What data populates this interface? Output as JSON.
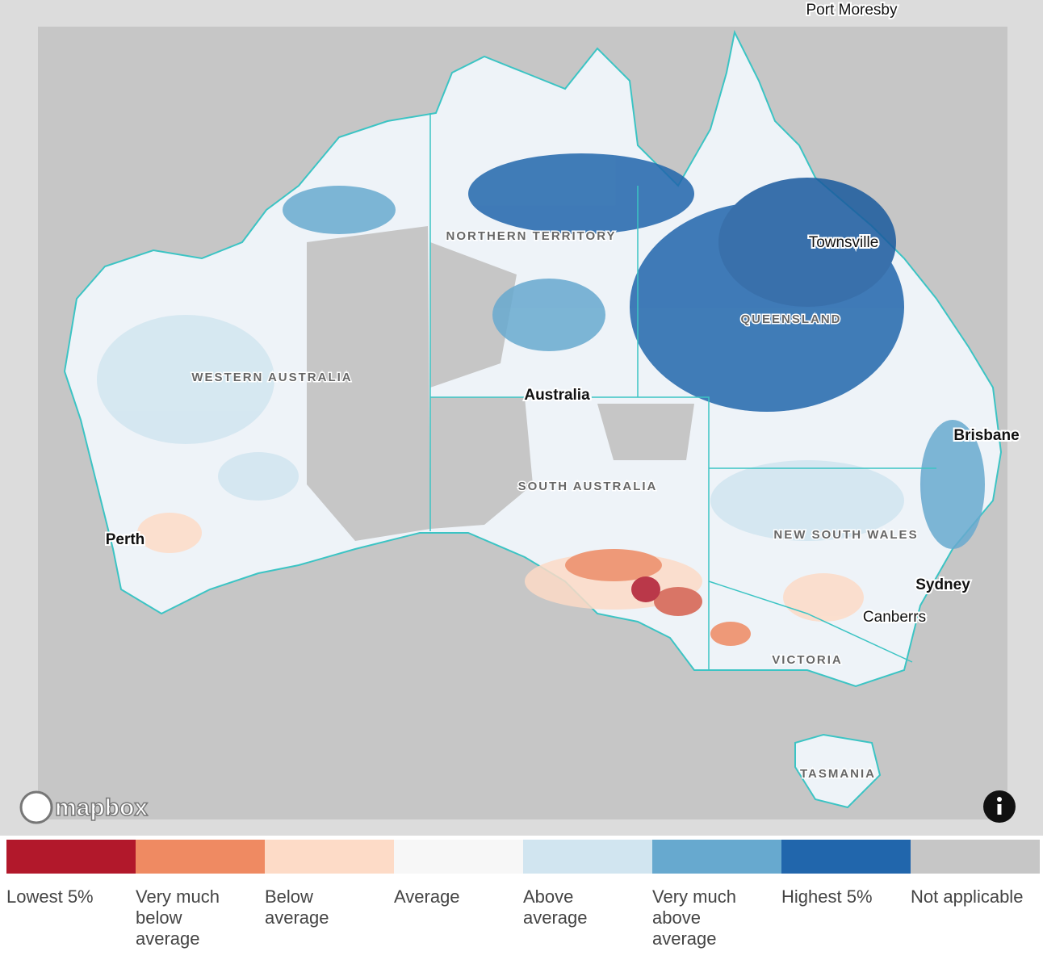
{
  "map": {
    "labels": {
      "port_moresby": "Port Moresby",
      "northern_territory": "NORTHERN TERRITORY",
      "townsville": "Townsville",
      "queensland": "QUEENSLAND",
      "western_australia": "WESTERN AUSTRALIA",
      "australia": "Australia",
      "brisbane": "Brisbane",
      "south_australia": "SOUTH AUSTRALIA",
      "perth": "Perth",
      "new_south_wales": "NEW SOUTH WALES",
      "sydney": "Sydney",
      "canberra": "Canberrs",
      "victoria": "VICTORIA",
      "tasmania": "TASMANIA"
    },
    "attribution": "mapbox"
  },
  "legend": [
    {
      "label": "Lowest 5%",
      "color": "#b2182b"
    },
    {
      "label": "Very much below average",
      "color": "#ef8a62"
    },
    {
      "label": "Below average",
      "color": "#fddbc7"
    },
    {
      "label": "Average",
      "color": "#f7f7f7"
    },
    {
      "label": "Above average",
      "color": "#d1e5f0"
    },
    {
      "label": "Very much above average",
      "color": "#67a9cf"
    },
    {
      "label": "Highest 5%",
      "color": "#2166ac"
    },
    {
      "label": "Not applicable",
      "color": "#c6c6c6"
    }
  ]
}
